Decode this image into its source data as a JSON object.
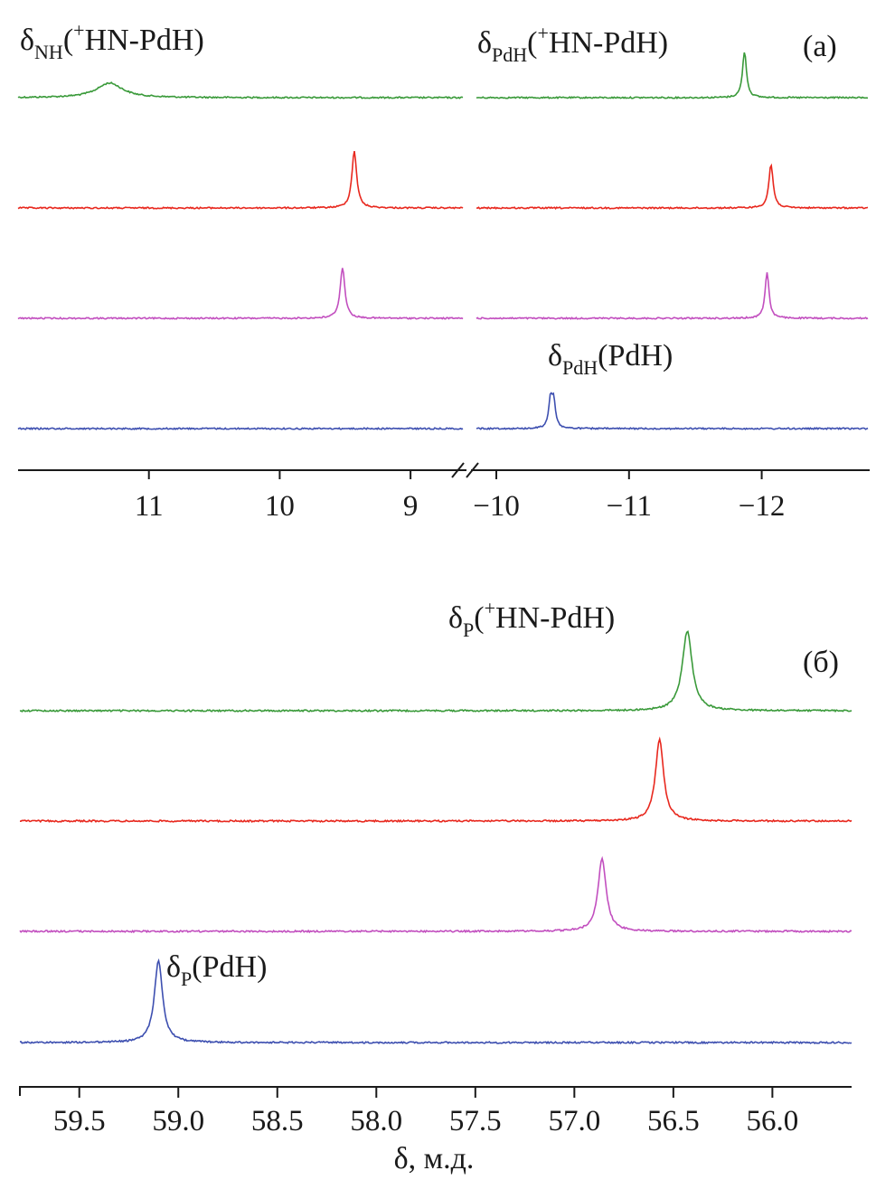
{
  "colors": {
    "green": "#3a9a3a",
    "red": "#e8281e",
    "magenta": "#c24fbf",
    "blue": "#3d4fb0",
    "axis": "#1a1a1a"
  },
  "chart_data": [
    {
      "type": "line",
      "panel_label": "(a)",
      "x_axis": {
        "broken": true,
        "segments": [
          {
            "xlim": [
              12.0,
              8.6
            ],
            "ticks": [
              11,
              10,
              9
            ],
            "tick_labels": [
              "11",
              "10",
              "9"
            ]
          },
          {
            "xlim": [
              -9.85,
              -12.8
            ],
            "ticks": [
              -10,
              -11,
              -12
            ],
            "tick_labels": [
              "−10",
              "−11",
              "−12"
            ]
          }
        ]
      },
      "series": [
        {
          "color": "green",
          "left_peak": {
            "x": 11.3,
            "height": 0.18,
            "width": 0.12
          },
          "right_peak": {
            "x": -11.87,
            "height": 0.85,
            "width": 0.018
          }
        },
        {
          "color": "red",
          "left_peak": {
            "x": 9.43,
            "height": 0.7,
            "width": 0.022
          },
          "right_peak": {
            "x": -12.07,
            "height": 0.8,
            "width": 0.02
          }
        },
        {
          "color": "magenta",
          "left_peak": {
            "x": 9.52,
            "height": 0.62,
            "width": 0.022
          },
          "right_peak": {
            "x": -12.04,
            "height": 0.85,
            "width": 0.018
          }
        },
        {
          "color": "blue",
          "left_peak": null,
          "right_peak": {
            "x": -10.42,
            "height": 0.95,
            "width": 0.016,
            "doublet": true
          }
        }
      ],
      "annotations": {
        "nh": {
          "delta": "δ",
          "sub": "NH",
          "open": "(",
          "sup": "+",
          "rest": "HN-PdH)"
        },
        "pdh_ion": {
          "delta": "δ",
          "sub": "PdH",
          "open": "(",
          "sup": "+",
          "rest": "HN-PdH)"
        },
        "pdh": {
          "delta": "δ",
          "sub": "PdH",
          "rest": "(PdH)"
        }
      }
    },
    {
      "type": "line",
      "panel_label": "(б)",
      "x_axis": {
        "xlim": [
          59.8,
          55.6
        ],
        "ticks": [
          59.5,
          59.0,
          58.5,
          58.0,
          57.5,
          57.0,
          56.5,
          56.0
        ],
        "tick_labels": [
          "59.5",
          "59.0",
          "58.5",
          "58.0",
          "57.5",
          "57.0",
          "56.5",
          "56.0"
        ],
        "label": "δ, м.д."
      },
      "series": [
        {
          "color": "green",
          "peak": {
            "x": 56.43,
            "height": 0.88,
            "width": 0.03
          }
        },
        {
          "color": "red",
          "peak": {
            "x": 56.57,
            "height": 0.9,
            "width": 0.025
          }
        },
        {
          "color": "magenta",
          "peak": {
            "x": 56.86,
            "height": 0.8,
            "width": 0.025
          }
        },
        {
          "color": "blue",
          "peak": {
            "x": 59.1,
            "height": 0.9,
            "width": 0.025
          }
        }
      ],
      "annotations": {
        "p_ion": {
          "delta": "δ",
          "sub": "P",
          "open": "(",
          "sup": "+",
          "rest": "HN-PdH)"
        },
        "p": {
          "delta": "δ",
          "sub": "P",
          "rest": "(PdH)"
        }
      }
    }
  ]
}
